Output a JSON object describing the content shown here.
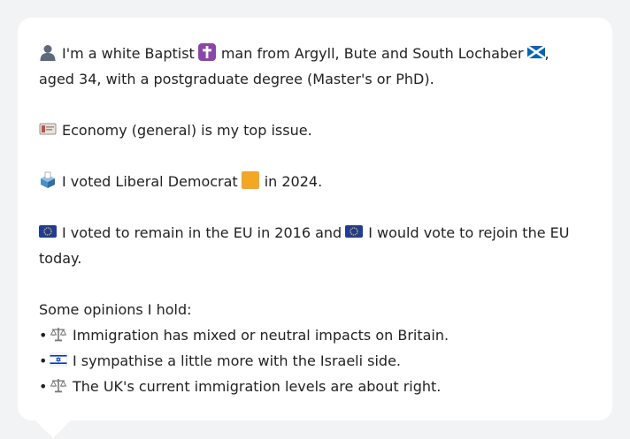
{
  "profile": {
    "line1_a": "I'm a white Baptist",
    "line1_b": "man from Argyll, Bute and South Lochaber",
    "line1_c": ",",
    "line2": "aged 34, with a postgraduate degree (Master's or PhD).",
    "issue": "Economy (general) is my top issue.",
    "vote_a": "I voted Liberal Democrat",
    "vote_b": "in 2024.",
    "eu_a": "I voted to remain in the EU in 2016 and",
    "eu_b": "I would vote to rejoin the EU",
    "eu_c": "today.",
    "opinions_heading": "Some opinions I hold:",
    "opinions": [
      "Immigration has mixed or neutral impacts on Britain.",
      "I sympathise a little more with the Israeli side.",
      "The UK's current immigration levels are about right."
    ],
    "bullet": "•"
  },
  "icons": {
    "person": "person-silhouette-icon",
    "cross": "latin-cross-icon",
    "scotland": "scotland-flag-icon",
    "money": "banknote-icon",
    "ballot": "ballot-box-icon",
    "lib_dem": "orange-square-icon",
    "eu": "eu-flag-icon",
    "scales": "balance-scale-icon",
    "israel": "israel-flag-icon"
  }
}
